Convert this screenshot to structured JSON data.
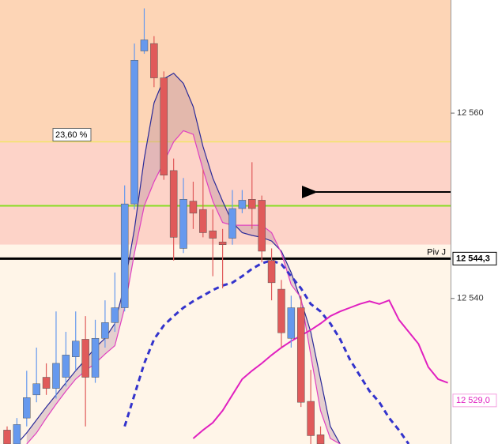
{
  "chart_data": {
    "type": "candlestick",
    "ylim": [
      12524.3,
      12572.2
    ],
    "yticks": [
      {
        "value": 12540,
        "label": "12 540"
      },
      {
        "value": 12560,
        "label": "12 560"
      }
    ],
    "up_color": "#6699ee",
    "down_color": "#e05a5a",
    "categories": [
      null,
      null,
      null,
      null,
      null,
      null,
      null,
      null,
      null,
      null,
      null,
      null,
      null,
      null,
      null,
      null,
      null,
      null,
      null,
      null,
      null,
      null,
      null,
      null,
      null,
      null,
      null,
      null,
      null,
      null,
      null,
      null,
      null,
      null,
      null,
      null,
      null,
      null,
      null,
      null,
      null,
      null,
      null,
      null,
      null,
      null
    ],
    "candles": [
      {
        "open": 12525.8,
        "high": 12526.2,
        "low": 12524.3,
        "close": 12524.3
      },
      {
        "open": 12524.3,
        "high": 12527.1,
        "low": 12524.3,
        "close": 12526.4
      },
      {
        "open": 12527.1,
        "high": 12532.2,
        "low": 12526.2,
        "close": 12529.3
      },
      {
        "open": 12529.6,
        "high": 12534.7,
        "low": 12528.8,
        "close": 12530.8
      },
      {
        "open": 12531.5,
        "high": 12533.0,
        "low": 12529.6,
        "close": 12530.3
      },
      {
        "open": 12530.3,
        "high": 12538.6,
        "low": 12529.2,
        "close": 12533.0
      },
      {
        "open": 12531.5,
        "high": 12536.4,
        "low": 12530.5,
        "close": 12533.9
      },
      {
        "open": 12533.7,
        "high": 12538.6,
        "low": 12532.2,
        "close": 12535.4
      },
      {
        "open": 12535.6,
        "high": 12538.1,
        "low": 12526.2,
        "close": 12531.5
      },
      {
        "open": 12531.5,
        "high": 12537.7,
        "low": 12530.9,
        "close": 12535.7
      },
      {
        "open": 12535.7,
        "high": 12539.8,
        "low": 12534.7,
        "close": 12537.4
      },
      {
        "open": 12537.4,
        "high": 12542.8,
        "low": 12536.4,
        "close": 12539.0
      },
      {
        "open": 12539.0,
        "high": 12552.2,
        "low": 12538.6,
        "close": 12550.2
      },
      {
        "open": 12550.2,
        "high": 12567.5,
        "low": 12549.6,
        "close": 12565.7
      },
      {
        "open": 12566.7,
        "high": 12571.3,
        "low": 12566.4,
        "close": 12567.9
      },
      {
        "open": 12567.5,
        "high": 12568.3,
        "low": 12562.8,
        "close": 12563.8
      },
      {
        "open": 12563.8,
        "high": 12564.5,
        "low": 12552.8,
        "close": 12553.3
      },
      {
        "open": 12553.8,
        "high": 12555.1,
        "low": 12544.1,
        "close": 12546.6
      },
      {
        "open": 12545.4,
        "high": 12553.0,
        "low": 12544.9,
        "close": 12550.7
      },
      {
        "open": 12550.5,
        "high": 12552.6,
        "low": 12547.5,
        "close": 12549.2
      },
      {
        "open": 12549.6,
        "high": 12553.9,
        "low": 12546.6,
        "close": 12547.1
      },
      {
        "open": 12547.3,
        "high": 12549.6,
        "low": 12542.4,
        "close": 12546.5
      },
      {
        "open": 12546.1,
        "high": 12547.5,
        "low": 12541.1,
        "close": 12545.8
      },
      {
        "open": 12546.5,
        "high": 12551.7,
        "low": 12545.8,
        "close": 12549.7
      },
      {
        "open": 12549.7,
        "high": 12551.7,
        "low": 12549.2,
        "close": 12550.6
      },
      {
        "open": 12550.7,
        "high": 12554.7,
        "low": 12547.5,
        "close": 12549.7
      },
      {
        "open": 12550.6,
        "high": 12551.1,
        "low": 12543.9,
        "close": 12545.1
      },
      {
        "open": 12544.1,
        "high": 12545.4,
        "low": 12539.8,
        "close": 12541.7
      },
      {
        "open": 12541.0,
        "high": 12542.0,
        "low": 12534.7,
        "close": 12536.3
      },
      {
        "open": 12535.7,
        "high": 12540.3,
        "low": 12534.7,
        "close": 12539.0
      },
      {
        "open": 12539.0,
        "high": 12540.3,
        "low": 12528.3,
        "close": 12528.8
      },
      {
        "open": 12528.9,
        "high": 12532.3,
        "low": 12524.3,
        "close": 12525.2
      },
      {
        "open": 12525.3,
        "high": 12526.2,
        "low": 12524.3,
        "close": 12524.3
      }
    ],
    "series": [
      {
        "color": "#2a2a99",
        "width": 1.2,
        "dash": false,
        "values": [
          null,
          12524.3,
          12525.5,
          12526.9,
          12528.3,
          12529.6,
          12530.9,
          12532.2,
          12533.4,
          12534.7,
          12535.7,
          12537.3,
          12541.5,
          12547.5,
          12555.1,
          12561.1,
          12563.7,
          12564.3,
          12563.2,
          12560.7,
          12556.4,
          12553.0,
          12550.5,
          12548.2,
          12547.1,
          12546.8,
          12546.6,
          12546.2,
          12545.1,
          12542.8,
          12539.8,
          12536.4,
          12531.3,
          12526.2,
          12524.3,
          null,
          null,
          null,
          null,
          null,
          null,
          null,
          null,
          null,
          null,
          null
        ]
      },
      {
        "color": "#e040c0",
        "width": 1.2,
        "dash": false,
        "values": [
          null,
          null,
          12524.3,
          12525.5,
          12527.1,
          12528.6,
          12530.0,
          12531.3,
          12532.2,
          12533.0,
          12534.0,
          12534.9,
          12539.0,
          12544.9,
          12550.0,
          12552.6,
          12554.7,
          12556.9,
          12558.1,
          12557.7,
          12553.9,
          12550.5,
          12548.2,
          12547.9,
          12547.9,
          12547.9,
          12547.9,
          12547.1,
          12544.9,
          12541.5,
          12540.1,
          12533.9,
          12527.9,
          12524.9,
          12524.3,
          null,
          null,
          null,
          null,
          null,
          null,
          null,
          null,
          null,
          null,
          null
        ]
      },
      {
        "color": "#3333cc",
        "width": 3,
        "dash": true,
        "values": [
          null,
          null,
          null,
          null,
          null,
          null,
          null,
          null,
          null,
          null,
          null,
          null,
          12526.2,
          12529.6,
          12533.0,
          12535.6,
          12537.1,
          12538.1,
          12539.0,
          12539.7,
          12540.3,
          12540.9,
          12541.4,
          12541.7,
          12542.4,
          12543.2,
          12543.8,
          12544.1,
          12543.7,
          12542.4,
          12541.1,
          12539.4,
          12538.6,
          12537.3,
          12535.6,
          12533.4,
          12531.7,
          12530.0,
          12528.8,
          12527.1,
          12525.8,
          12524.3,
          null,
          null,
          null,
          null
        ]
      },
      {
        "color": "#e020c0",
        "width": 2,
        "dash": false,
        "values": [
          null,
          null,
          null,
          null,
          null,
          null,
          null,
          null,
          null,
          null,
          null,
          null,
          null,
          null,
          null,
          null,
          null,
          null,
          null,
          12524.9,
          12525.8,
          12526.6,
          12527.9,
          12529.6,
          12531.3,
          12532.2,
          12533.0,
          12533.9,
          12534.7,
          12535.4,
          12536.0,
          12536.6,
          12537.3,
          12538.1,
          12538.6,
          12539.0,
          12539.4,
          12539.7,
          12539.4,
          12539.8,
          12537.7,
          12536.4,
          12535.1,
          12532.6,
          12531.3,
          12530.9
        ]
      }
    ],
    "zones": [
      {
        "from": 12556.9,
        "to": 12572.2,
        "color": "#fdd5b6"
      },
      {
        "from": 12545.8,
        "to": 12556.9,
        "color": "#fdd3c8"
      },
      {
        "from": 12524.3,
        "to": 12545.8,
        "color": "#fff5e8"
      }
    ],
    "levels": [
      {
        "value": 12556.9,
        "color": "#f3e36a",
        "width": 1.5,
        "label": "23,60 %"
      },
      {
        "value": 12550.0,
        "color": "#88dd22",
        "width": 2
      },
      {
        "value": 12544.3,
        "color": "#000000",
        "width": 3,
        "label": "Piv J"
      }
    ],
    "price_labels": [
      {
        "value": 12544.3,
        "label": "12 544,3",
        "color": "#000000",
        "border": "#000000",
        "bold": true
      },
      {
        "value": 12529.0,
        "label": "12 529,0",
        "color": "#e020c0",
        "border": "#f4a0e0",
        "bold": false
      }
    ]
  }
}
